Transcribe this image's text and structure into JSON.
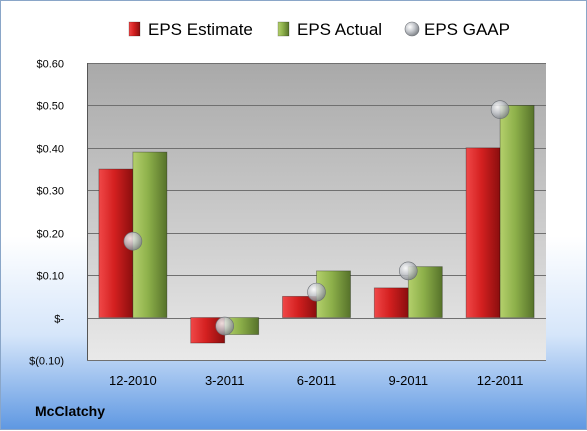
{
  "company": "McClatchy",
  "chart_data": {
    "type": "bar",
    "categories": [
      "12-2010",
      "3-2011",
      "6-2011",
      "9-2011",
      "12-2011"
    ],
    "series": [
      {
        "name": "EPS Estimate",
        "kind": "bar",
        "color": "#d42020",
        "values": [
          0.35,
          -0.06,
          0.05,
          0.07,
          0.4
        ]
      },
      {
        "name": "EPS Actual",
        "kind": "bar",
        "color": "#8db04a",
        "values": [
          0.39,
          -0.04,
          0.11,
          0.12,
          0.5
        ]
      },
      {
        "name": "EPS GAAP",
        "kind": "scatter",
        "color": "#b8bcc2",
        "values": [
          0.18,
          -0.02,
          0.06,
          0.11,
          0.49
        ]
      }
    ],
    "ylim": [
      -0.1,
      0.6
    ],
    "yticks": [
      {
        "value": 0.6,
        "label": "$0.60"
      },
      {
        "value": 0.5,
        "label": "$0.50"
      },
      {
        "value": 0.4,
        "label": "$0.40"
      },
      {
        "value": 0.3,
        "label": "$0.30"
      },
      {
        "value": 0.2,
        "label": "$0.20"
      },
      {
        "value": 0.1,
        "label": "$0.10"
      },
      {
        "value": 0.0,
        "label": "$-"
      },
      {
        "value": -0.1,
        "label": "$(0.10)"
      }
    ],
    "grid": true,
    "legend_position": "top"
  }
}
